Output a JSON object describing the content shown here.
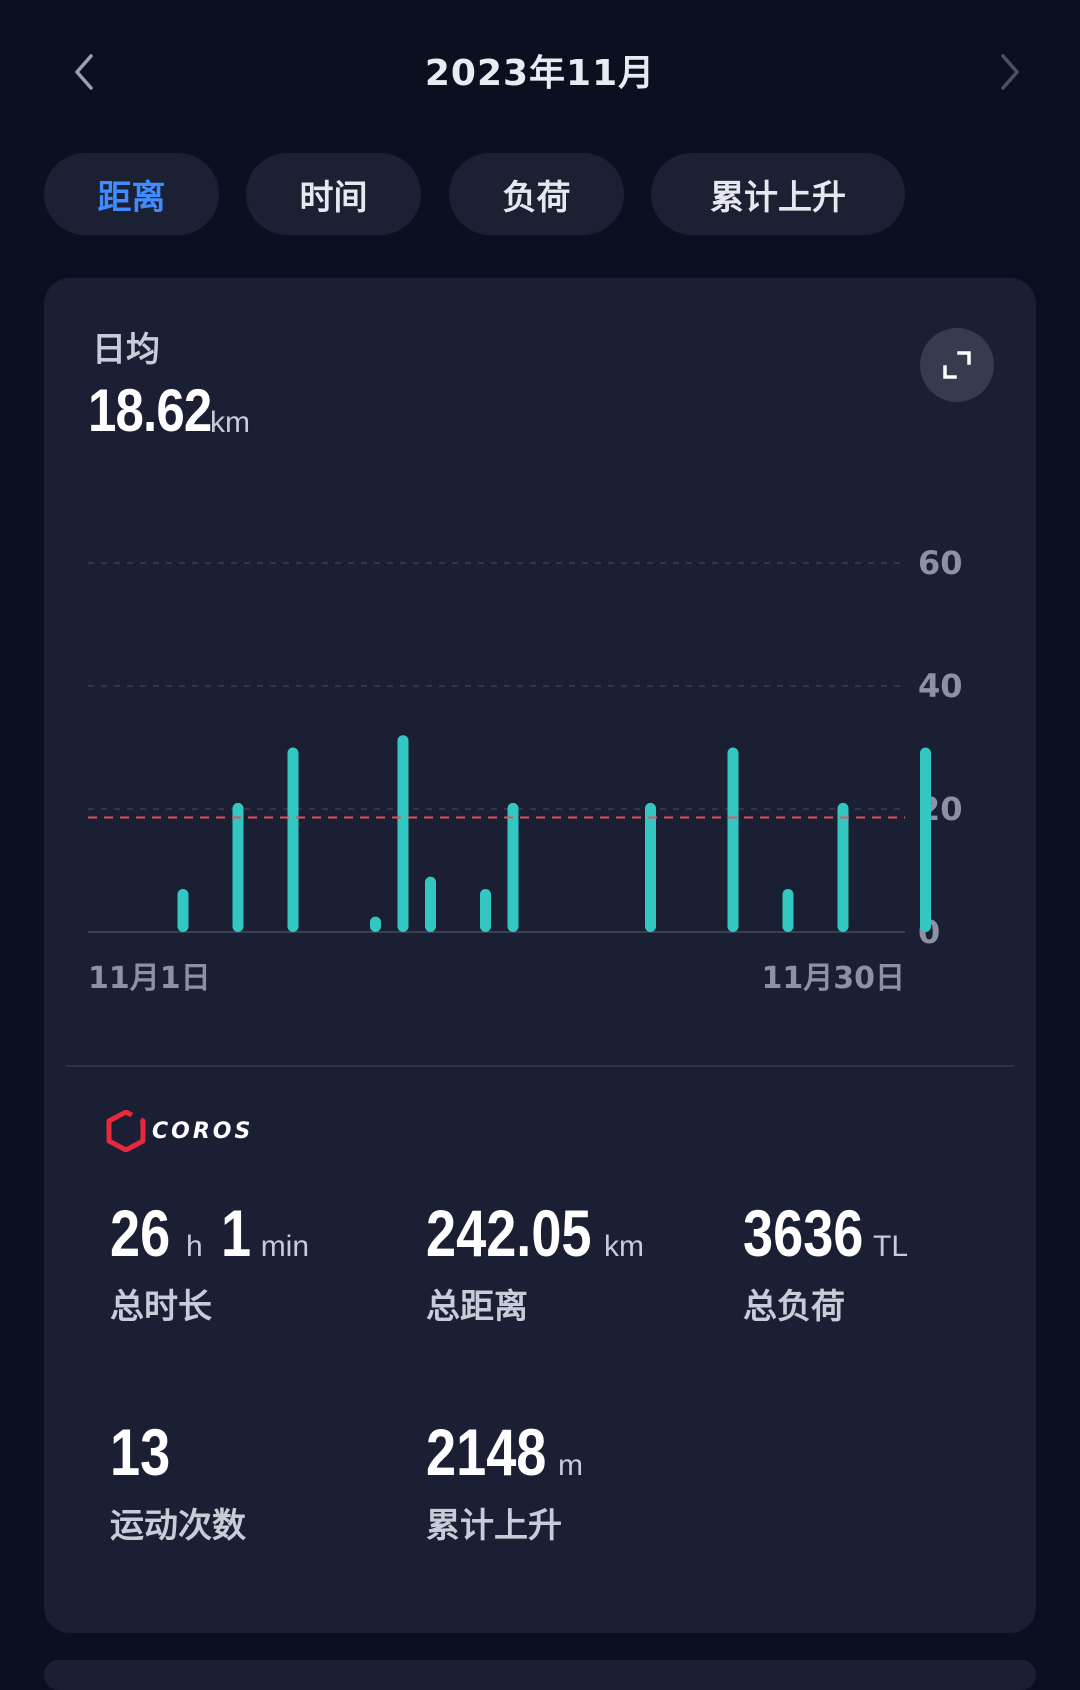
{
  "header": {
    "title": "2023年11月",
    "prev_icon": "chevron-left-icon",
    "next_icon": "chevron-right-icon"
  },
  "tabs": [
    {
      "label": "距离",
      "active": true
    },
    {
      "label": "时间",
      "active": false
    },
    {
      "label": "负荷",
      "active": false
    },
    {
      "label": "累计上升",
      "active": false
    }
  ],
  "summary": {
    "label": "日均",
    "value": "18.62",
    "unit": "km",
    "expand_icon": "expand-icon"
  },
  "chart_data": {
    "type": "bar",
    "x_start_label": "11月1日",
    "x_end_label": "11月30日",
    "days": [
      1,
      2,
      3,
      4,
      5,
      6,
      7,
      8,
      9,
      10,
      11,
      12,
      13,
      14,
      15,
      16,
      17,
      18,
      19,
      20,
      21,
      22,
      23,
      24,
      25,
      26,
      27,
      28,
      29,
      30
    ],
    "values": [
      0,
      0,
      7,
      0,
      21,
      0,
      30,
      0,
      0,
      2.5,
      32,
      9,
      0,
      7,
      21,
      0,
      0,
      0,
      0,
      21,
      0,
      0,
      30,
      0,
      7,
      0,
      21,
      0,
      0,
      30
    ],
    "yticks": [
      0,
      20,
      40,
      60
    ],
    "ylim": [
      0,
      60
    ],
    "average": 18.62,
    "bar_color": "#33c7c1",
    "average_line_color": "#e0525a",
    "grid": true
  },
  "brand": {
    "name": "COROS",
    "logo_color": "#e8283c"
  },
  "stats": [
    {
      "value1": "26",
      "unit1": "h",
      "value2": "1",
      "unit2": "min",
      "label": "总时长"
    },
    {
      "value1": "242.05",
      "unit1": "km",
      "label": "总距离"
    },
    {
      "value1": "3636",
      "unit1": "TL",
      "label": "总负荷"
    },
    {
      "value1": "13",
      "unit1": "",
      "label": "运动次数"
    },
    {
      "value1": "2148",
      "unit1": "m",
      "label": "累计上升"
    }
  ]
}
